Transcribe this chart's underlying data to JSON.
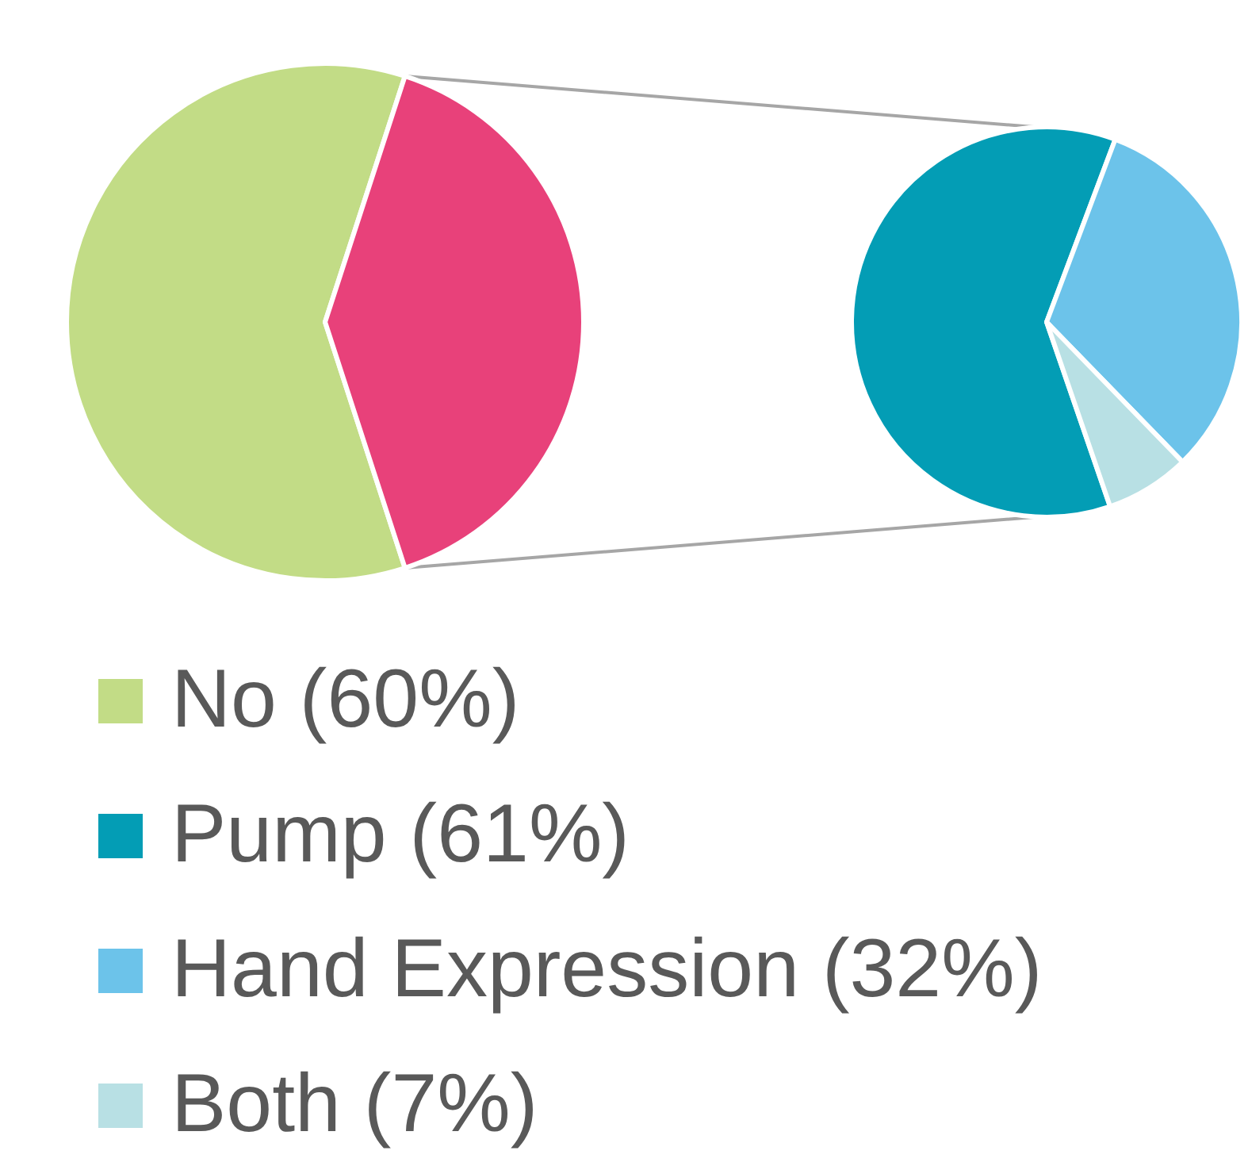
{
  "chart_data": [
    {
      "type": "pie",
      "categories": [
        "No (60%)",
        null
      ],
      "values": [
        60,
        40
      ],
      "colors": [
        "#c2dc86",
        "#e8417a"
      ],
      "legend": "bottom"
    },
    {
      "type": "pie",
      "categories": [
        "Pump (61%)",
        "Hand Expression (32%)",
        "Both (7%)"
      ],
      "values": [
        61,
        32,
        7
      ],
      "colors": [
        "#039db5",
        "#6cc3ea",
        "#b8e0e4"
      ],
      "legend": "bottom"
    }
  ]
}
